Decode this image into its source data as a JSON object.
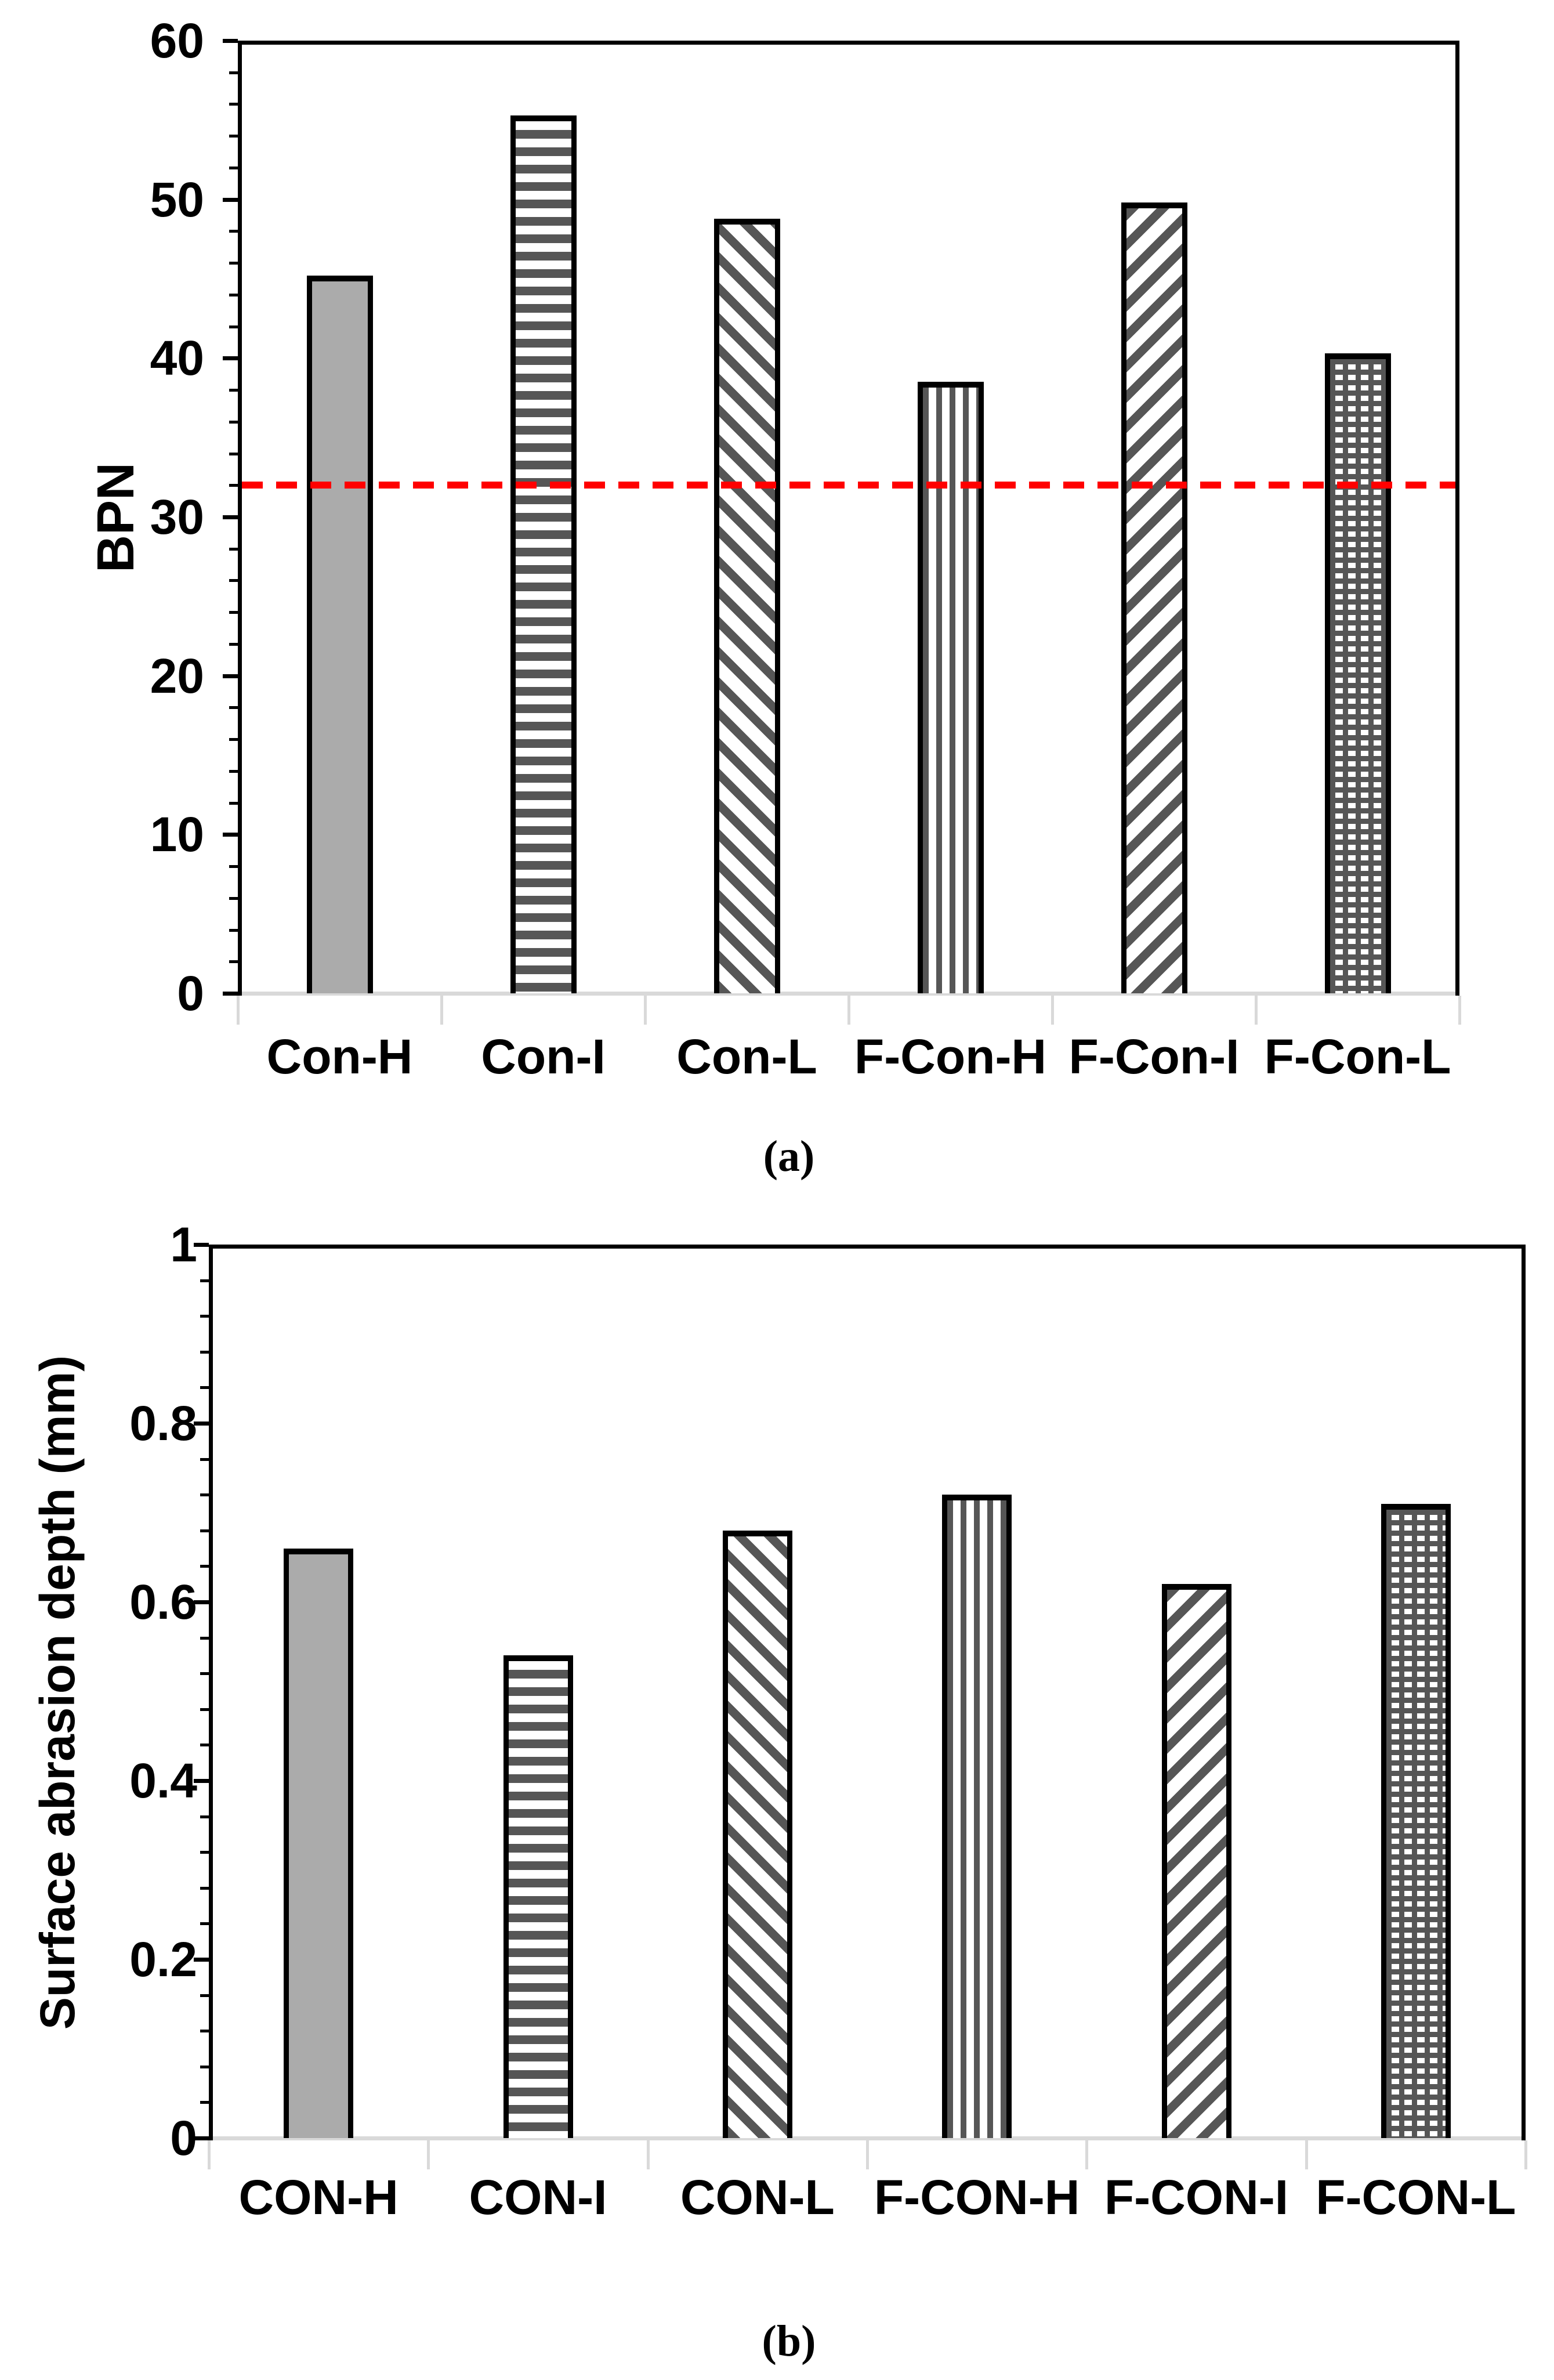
{
  "figure": {
    "background": "#ffffff",
    "caption_a": "(a)",
    "caption_b": "(b)"
  },
  "colors": {
    "solid_bar_fill": "#ABABAB",
    "pattern_dark_gray": "#565656",
    "axis_black": "#000000",
    "category_axis_gray": "#D9D9D9",
    "reference_red": "#FF0000"
  },
  "chart_data": [
    {
      "id": "a",
      "type": "bar",
      "caption": "(a)",
      "ylabel": "BPN",
      "xlabel": "",
      "categories": [
        "Con-H",
        "Con-I",
        "Con-L",
        "F-Con-H",
        "F-Con-I",
        "F-Con-L"
      ],
      "values": [
        45.2,
        55.3,
        48.8,
        38.5,
        49.8,
        40.3
      ],
      "ylim": [
        0,
        60
      ],
      "ytick_values": [
        60,
        50,
        40,
        30,
        20,
        10,
        0
      ],
      "ytick_labels": [
        "60",
        "50",
        "40",
        "30",
        "20",
        "10",
        "0"
      ],
      "minor_ticks_per_major": 4,
      "grid": false,
      "legend": false,
      "bar_patterns": [
        "solid",
        "hlines",
        "diag-down",
        "vlines",
        "diag-up",
        "grid"
      ],
      "reference_line": {
        "value": 32,
        "color": "#FF0000",
        "style": "dashed"
      }
    },
    {
      "id": "b",
      "type": "bar",
      "caption": "(b)",
      "ylabel": "Surface abrasion depth (mm)",
      "xlabel": "",
      "categories": [
        "CON-H",
        "CON-I",
        "CON-L",
        "F-CON-H",
        "F-CON-I",
        "F-CON-L"
      ],
      "values": [
        0.66,
        0.54,
        0.68,
        0.72,
        0.62,
        0.71
      ],
      "ylim": [
        0,
        1
      ],
      "ytick_values": [
        1,
        0.8,
        0.6,
        0.4,
        0.2,
        0
      ],
      "ytick_labels": [
        "1",
        "0.8",
        "0.6",
        "0.4",
        "0.2",
        "0"
      ],
      "minor_ticks_per_major": 4,
      "grid": false,
      "legend": false,
      "bar_patterns": [
        "solid",
        "hlines",
        "diag-down",
        "vlines",
        "diag-up",
        "grid"
      ],
      "reference_line": null
    }
  ]
}
